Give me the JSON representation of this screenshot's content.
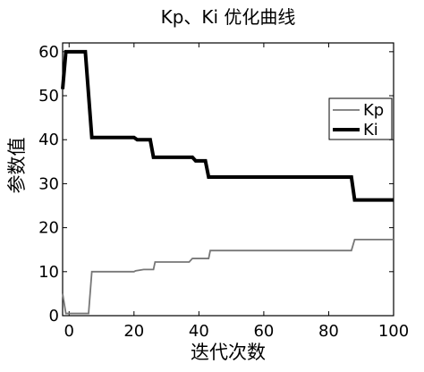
{
  "chart_data": {
    "type": "line",
    "title": "Kp、Ki  优化曲线",
    "xlabel": "迭代次数",
    "ylabel": "参数值",
    "xlim": [
      -2,
      100
    ],
    "ylim": [
      0,
      62
    ],
    "xticks": [
      0,
      20,
      40,
      60,
      80,
      100
    ],
    "yticks": [
      0,
      10,
      20,
      30,
      40,
      50,
      60
    ],
    "grid": false,
    "legend_position": "upper-right",
    "series": [
      {
        "name": "Kp",
        "color": "#777777",
        "x": [
          -2,
          -1,
          6,
          7,
          20,
          20.5,
          23,
          26,
          26.5,
          37,
          38,
          43,
          43.5,
          87,
          88,
          100
        ],
        "y": [
          5,
          0.5,
          0.5,
          10,
          10,
          10.2,
          10.5,
          10.5,
          12.2,
          12.2,
          13,
          13,
          14.8,
          14.8,
          17.3,
          17.3
        ]
      },
      {
        "name": "Ki",
        "color": "#000000",
        "x": [
          -2,
          -1,
          5,
          7,
          20,
          21,
          25,
          26,
          38,
          39,
          42,
          43,
          87,
          88,
          100
        ],
        "y": [
          51.5,
          60,
          60,
          40.5,
          40.5,
          40,
          40,
          36,
          36,
          35.2,
          35.2,
          31.5,
          31.5,
          26.3,
          26.3
        ]
      }
    ]
  }
}
